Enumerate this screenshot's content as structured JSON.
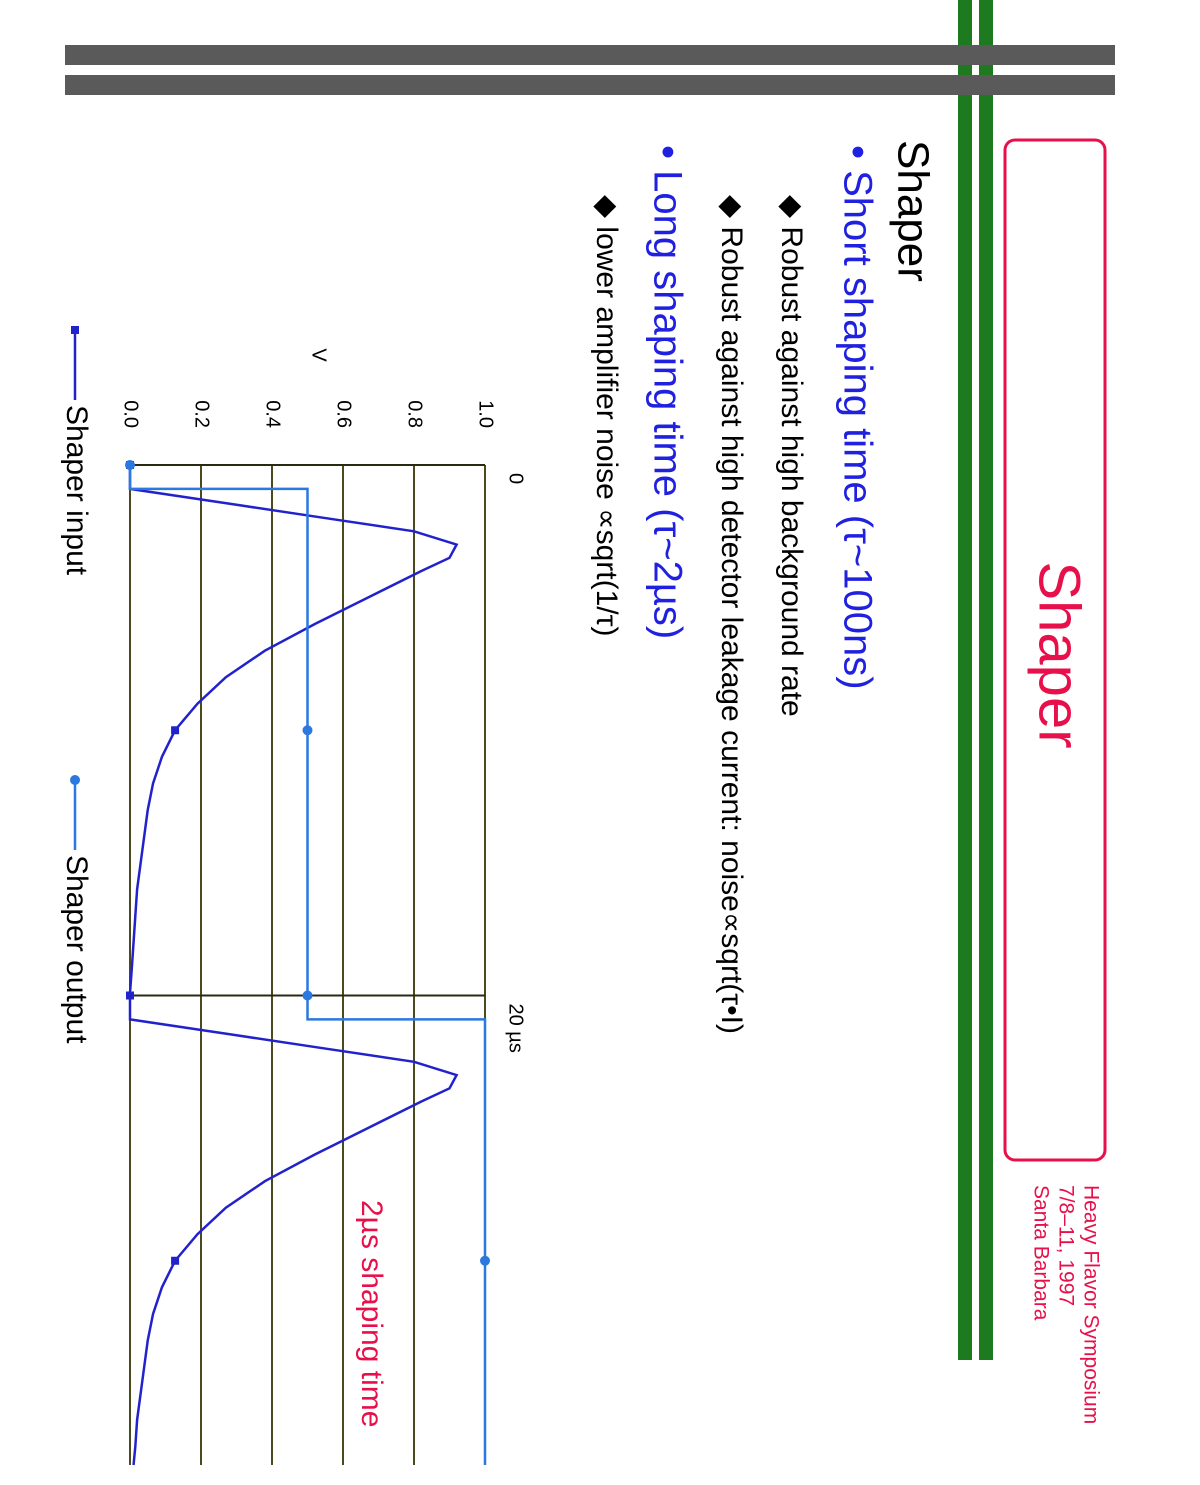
{
  "slide": {
    "title": "Shaper",
    "conference": [
      "Heavy Flavor Symposium",
      "7/8–11, 1997",
      "Santa Barbara"
    ],
    "heading": "Shaper",
    "bullets": [
      {
        "text": "• Short shaping time (τ~100ns)",
        "level": 1
      },
      {
        "text": "◆ Robust against high background rate",
        "level": 2
      },
      {
        "text": "◆ Robust against high detector leakage current: noise∝sqrt(τ•I)",
        "level": 2
      },
      {
        "text": "• Long shaping time (τ~2µs)",
        "level": 1
      },
      {
        "text": "◆ lower amplifier noise ∝sqrt(1/τ)",
        "level": 2
      }
    ]
  },
  "chart_data": {
    "type": "line",
    "ylabel": "V",
    "annotation": "2µs shaping time",
    "xlim": [
      0,
      37.7
    ],
    "ylim": [
      0,
      1
    ],
    "xticks": [
      0,
      {
        "value": 20,
        "label": "20 µs"
      }
    ],
    "yticks": [
      {
        "value": 0,
        "label": "0.0"
      },
      0.2,
      0.4,
      0.6,
      0.8,
      {
        "value": 1,
        "label": "1.0"
      }
    ],
    "grid": true,
    "series": [
      {
        "name": "Shaper input",
        "color": "#2222cc",
        "marker": "square",
        "x": [
          0,
          0.9,
          1.5,
          2,
          2.5,
          3,
          3.5,
          4,
          5,
          6,
          7,
          8,
          9,
          10,
          11,
          12,
          13,
          14,
          15,
          16,
          17,
          18,
          19,
          19.9,
          20,
          20.9,
          21.5,
          22,
          22.5,
          23,
          23.5,
          24,
          25,
          26,
          27,
          28,
          29,
          30,
          31,
          32,
          33,
          34,
          35,
          36,
          37,
          37.7
        ],
        "values": [
          0,
          0,
          0.3,
          0.55,
          0.8,
          0.92,
          0.9,
          0.82,
          0.67,
          0.52,
          0.38,
          0.27,
          0.19,
          0.127,
          0.09,
          0.065,
          0.05,
          0.04,
          0.03,
          0.02,
          0.015,
          0.01,
          0.005,
          0,
          0,
          0,
          0.3,
          0.55,
          0.8,
          0.92,
          0.9,
          0.82,
          0.67,
          0.52,
          0.38,
          0.27,
          0.19,
          0.127,
          0.09,
          0.065,
          0.05,
          0.04,
          0.03,
          0.02,
          0.015,
          0.01
        ]
      },
      {
        "name": "Shaper output",
        "color": "#2a78e0",
        "marker": "circle",
        "x": [
          0,
          0.9,
          0.9,
          10,
          20,
          20.9,
          20.9,
          30,
          37.7
        ],
        "values": [
          0,
          0,
          0.5,
          0.5,
          0.5,
          0.5,
          1,
          1,
          1
        ]
      }
    ]
  }
}
